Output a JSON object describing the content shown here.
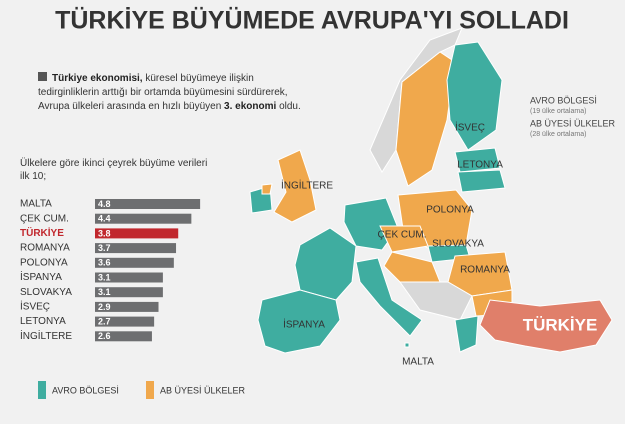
{
  "title": "TÜRKİYE BÜYÜMEDE AVRUPA'YI SOLLADI",
  "intro": [
    "Türkiye ekonomisi,",
    " küresel büyümeye ilişkin tedirginliklerin arttığı bir ortamda büyümesini sürdürerek, Avrupa ülkeleri arasında en hızlı büyüyen ",
    "3. ekonomi",
    " oldu."
  ],
  "chart_data": {
    "type": "bar",
    "orientation": "horizontal",
    "title": "Ülkelere göre ikinci çeyrek büyüme verileri ilk 10;",
    "categories": [
      "MALTA",
      "ÇEK CUM.",
      "TÜRKİYE",
      "ROMANYA",
      "POLONYA",
      "İSPANYA",
      "SLOVAKYA",
      "İSVEÇ",
      "LETONYA",
      "İNGİLTERE"
    ],
    "values": [
      4.8,
      4.4,
      3.8,
      3.7,
      3.6,
      3.1,
      3.1,
      2.9,
      2.7,
      2.6
    ],
    "colors": [
      "#6d6e70",
      "#6d6e70",
      "#c1272d",
      "#6d6e70",
      "#6d6e70",
      "#6d6e70",
      "#6d6e70",
      "#6d6e70",
      "#6d6e70",
      "#6d6e70"
    ]
  },
  "map": {
    "labels": [
      "İSVEÇ",
      "LETONYA",
      "POLONYA",
      "ÇEK CUM.",
      "SLOVAKYA",
      "ROMANYA",
      "İNGİLTERE",
      "İSPANYA",
      "MALTA",
      "TÜRKİYE"
    ],
    "legend": [
      {
        "label": "AVRO BÖLGESİ",
        "note": "(19 ülke ortalama)"
      },
      {
        "label": "AB ÜYESİ ÜLKELER",
        "note": "(28 ülke ortalama)"
      }
    ],
    "key": [
      {
        "label": "AVRO BÖLGESİ",
        "color": "#3fada0"
      },
      {
        "label": "AB ÜYESİ ÜLKELER",
        "color": "#f0a84c"
      }
    ]
  }
}
